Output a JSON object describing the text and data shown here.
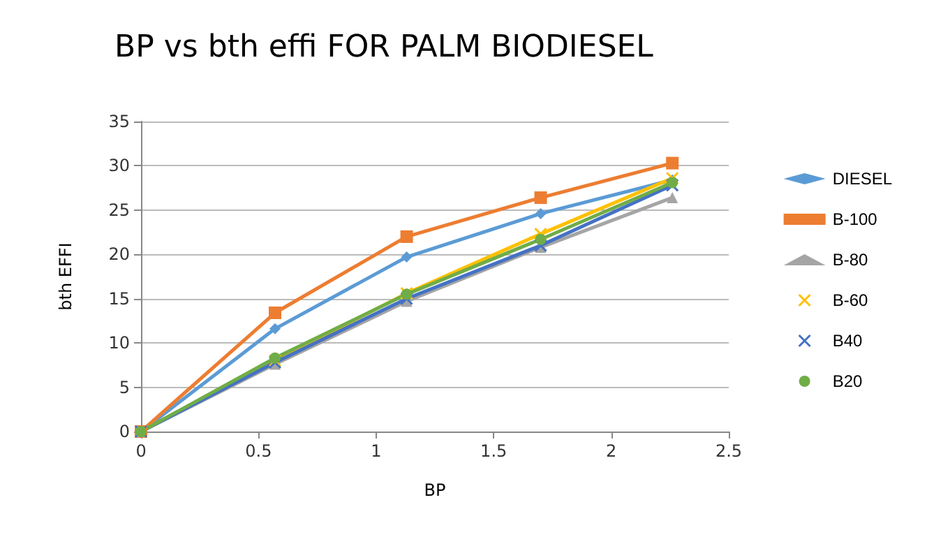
{
  "chart_data": {
    "type": "line",
    "title": "BP vs bth effi FOR PALM BIODIESEL",
    "xlabel": "BP",
    "ylabel": "bth EFFI",
    "x": [
      0,
      0.57,
      1.13,
      1.7,
      2.26
    ],
    "series": [
      {
        "name": "DIESEL",
        "color": "#5b9bd5",
        "marker": "diamond",
        "values": [
          0,
          11.6,
          19.7,
          24.6,
          28.4
        ]
      },
      {
        "name": "B-100",
        "color": "#ed7d31",
        "marker": "square",
        "values": [
          0,
          13.4,
          22.0,
          26.4,
          30.3
        ]
      },
      {
        "name": "B-80",
        "color": "#a5a5a5",
        "marker": "triangle",
        "values": [
          0,
          7.6,
          14.7,
          20.8,
          26.4
        ]
      },
      {
        "name": "B-60",
        "color": "#ffc000",
        "marker": "cross",
        "values": [
          0,
          8.0,
          15.6,
          22.3,
          28.6
        ]
      },
      {
        "name": "B40",
        "color": "#4472c4",
        "marker": "cross",
        "values": [
          0,
          7.8,
          15.0,
          21.0,
          27.8
        ]
      },
      {
        "name": "B20",
        "color": "#70ad47",
        "marker": "circle",
        "values": [
          0,
          8.3,
          15.5,
          21.7,
          28.1
        ]
      }
    ],
    "xlim": [
      0,
      2.5
    ],
    "xticks": [
      0,
      0.5,
      1,
      1.5,
      2,
      2.5
    ],
    "ylim": [
      0,
      35
    ],
    "yticks": [
      0,
      5,
      10,
      15,
      20,
      25,
      30,
      35
    ],
    "grid": "y",
    "legend": "right"
  }
}
